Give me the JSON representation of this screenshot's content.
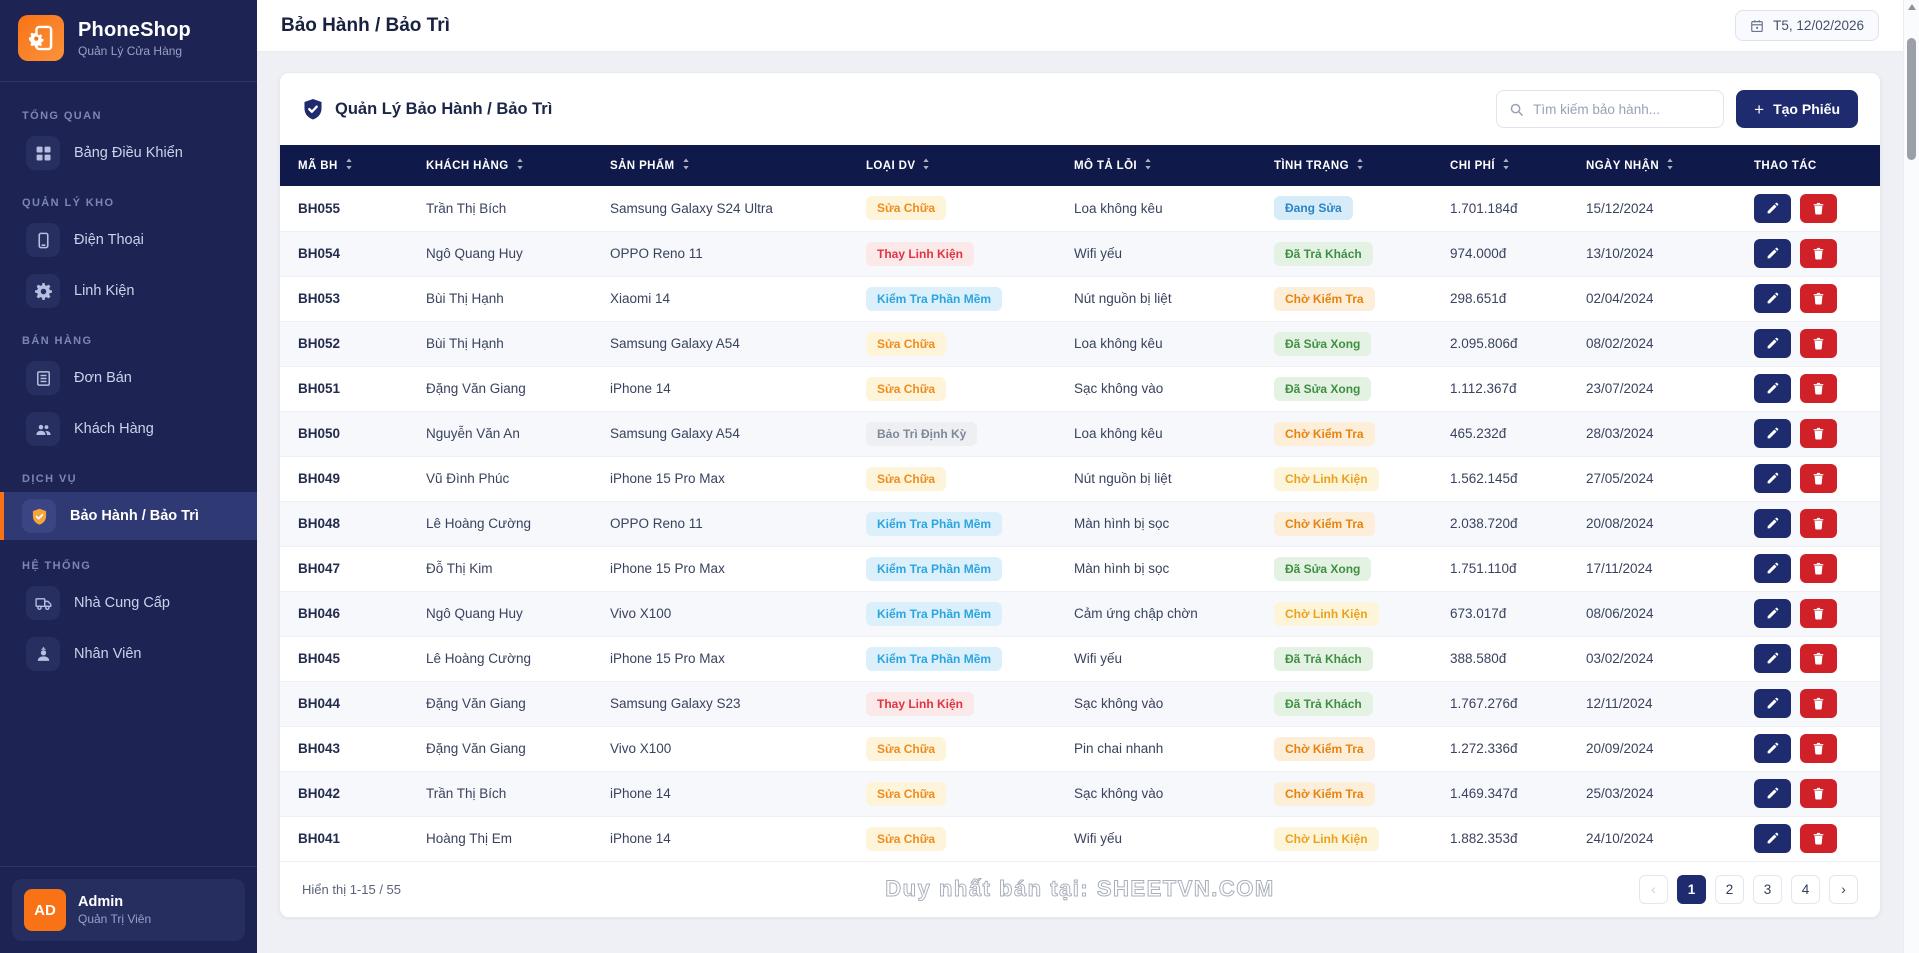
{
  "brand": {
    "name": "PhoneShop",
    "tagline": "Quản Lý Cửa Hàng"
  },
  "sidebar": {
    "sections": [
      {
        "label": "TỔNG QUAN",
        "items": [
          {
            "id": "dashboard",
            "icon": "dashboard",
            "label": "Bảng Điều Khiển",
            "active": false
          }
        ]
      },
      {
        "label": "QUẢN LÝ KHO",
        "items": [
          {
            "id": "phones",
            "icon": "phone",
            "label": "Điện Thoại",
            "active": false
          },
          {
            "id": "parts",
            "icon": "gear",
            "label": "Linh Kiện",
            "active": false
          }
        ]
      },
      {
        "label": "BÁN HÀNG",
        "items": [
          {
            "id": "orders",
            "icon": "receipt",
            "label": "Đơn Bán",
            "active": false
          },
          {
            "id": "customers",
            "icon": "people",
            "label": "Khách Hàng",
            "active": false
          }
        ]
      },
      {
        "label": "DỊCH VỤ",
        "items": [
          {
            "id": "warranty",
            "icon": "shield-check",
            "label": "Bảo Hành / Bảo Trì",
            "active": true
          }
        ]
      },
      {
        "label": "HỆ THỐNG",
        "items": [
          {
            "id": "suppliers",
            "icon": "truck",
            "label": "Nhà Cung Cấp",
            "active": false
          },
          {
            "id": "staff",
            "icon": "worker",
            "label": "Nhân Viên",
            "active": false
          }
        ]
      }
    ],
    "user": {
      "initials": "AD",
      "name": "Admin",
      "role": "Quản Trị Viên"
    }
  },
  "header": {
    "title": "Bảo Hành / Bảo Trì",
    "date_label": "T5, 12/02/2026"
  },
  "panel": {
    "title": "Quản Lý Bảo Hành / Bảo Trì",
    "search_placeholder": "Tìm kiếm bảo hành...",
    "create_button": "Tạo Phiếu"
  },
  "table": {
    "columns": [
      {
        "label": "MÃ BH",
        "sortable": true
      },
      {
        "label": "KHÁCH HÀNG",
        "sortable": true
      },
      {
        "label": "SẢN PHẨM",
        "sortable": true
      },
      {
        "label": "LOẠI DV",
        "sortable": true
      },
      {
        "label": "MÔ TẢ LỖI",
        "sortable": true
      },
      {
        "label": "TÌNH TRẠNG",
        "sortable": true
      },
      {
        "label": "CHI PHÍ",
        "sortable": true
      },
      {
        "label": "NGÀY NHẬN",
        "sortable": true
      },
      {
        "label": "THAO TÁC",
        "sortable": false
      }
    ],
    "service_types": {
      "Sửa Chữa": {
        "bg": "#fdf4da",
        "fg": "#ee8d1e"
      },
      "Thay Linh Kiện": {
        "bg": "#fbe9ea",
        "fg": "#df3540"
      },
      "Kiểm Tra Phần Mềm": {
        "bg": "#dcf0fb",
        "fg": "#2ba4e0"
      },
      "Bảo Trì Định Kỳ": {
        "bg": "#edeff3",
        "fg": "#7e8898"
      }
    },
    "statuses": {
      "Đang Sửa": {
        "bg": "#d7ecf9",
        "fg": "#2d84c5"
      },
      "Đã Trả Khách": {
        "bg": "#e4f2e4",
        "fg": "#3f8f43"
      },
      "Chờ Kiểm Tra": {
        "bg": "#fdeeda",
        "fg": "#e7820d"
      },
      "Đã Sửa Xong": {
        "bg": "#e4f2e4",
        "fg": "#3f8f43"
      },
      "Chờ Linh Kiện": {
        "bg": "#fdf5d9",
        "fg": "#eda01d"
      }
    },
    "rows": [
      {
        "id": "BH055",
        "customer": "Trần Thị Bích",
        "product": "Samsung Galaxy S24 Ultra",
        "service": "Sửa Chữa",
        "issue": "Loa không kêu",
        "status": "Đang Sửa",
        "cost": "1.701.184đ",
        "date": "15/12/2024"
      },
      {
        "id": "BH054",
        "customer": "Ngô Quang Huy",
        "product": "OPPO Reno 11",
        "service": "Thay Linh Kiện",
        "issue": "Wifi yếu",
        "status": "Đã Trả Khách",
        "cost": "974.000đ",
        "date": "13/10/2024"
      },
      {
        "id": "BH053",
        "customer": "Bùi Thị Hạnh",
        "product": "Xiaomi 14",
        "service": "Kiểm Tra Phần Mềm",
        "issue": "Nút nguồn bị liệt",
        "status": "Chờ Kiểm Tra",
        "cost": "298.651đ",
        "date": "02/04/2024"
      },
      {
        "id": "BH052",
        "customer": "Bùi Thị Hạnh",
        "product": "Samsung Galaxy A54",
        "service": "Sửa Chữa",
        "issue": "Loa không kêu",
        "status": "Đã Sửa Xong",
        "cost": "2.095.806đ",
        "date": "08/02/2024"
      },
      {
        "id": "BH051",
        "customer": "Đặng Văn Giang",
        "product": "iPhone 14",
        "service": "Sửa Chữa",
        "issue": "Sạc không vào",
        "status": "Đã Sửa Xong",
        "cost": "1.112.367đ",
        "date": "23/07/2024"
      },
      {
        "id": "BH050",
        "customer": "Nguyễn Văn An",
        "product": "Samsung Galaxy A54",
        "service": "Bảo Trì Định Kỳ",
        "issue": "Loa không kêu",
        "status": "Chờ Kiểm Tra",
        "cost": "465.232đ",
        "date": "28/03/2024"
      },
      {
        "id": "BH049",
        "customer": "Vũ Đình Phúc",
        "product": "iPhone 15 Pro Max",
        "service": "Sửa Chữa",
        "issue": "Nút nguồn bị liệt",
        "status": "Chờ Linh Kiện",
        "cost": "1.562.145đ",
        "date": "27/05/2024"
      },
      {
        "id": "BH048",
        "customer": "Lê Hoàng Cường",
        "product": "OPPO Reno 11",
        "service": "Kiểm Tra Phần Mềm",
        "issue": "Màn hình bị sọc",
        "status": "Chờ Kiểm Tra",
        "cost": "2.038.720đ",
        "date": "20/08/2024"
      },
      {
        "id": "BH047",
        "customer": "Đỗ Thị Kim",
        "product": "iPhone 15 Pro Max",
        "service": "Kiểm Tra Phần Mềm",
        "issue": "Màn hình bị sọc",
        "status": "Đã Sửa Xong",
        "cost": "1.751.110đ",
        "date": "17/11/2024"
      },
      {
        "id": "BH046",
        "customer": "Ngô Quang Huy",
        "product": "Vivo X100",
        "service": "Kiểm Tra Phần Mềm",
        "issue": "Cảm ứng chập chờn",
        "status": "Chờ Linh Kiện",
        "cost": "673.017đ",
        "date": "08/06/2024"
      },
      {
        "id": "BH045",
        "customer": "Lê Hoàng Cường",
        "product": "iPhone 15 Pro Max",
        "service": "Kiểm Tra Phần Mềm",
        "issue": "Wifi yếu",
        "status": "Đã Trả Khách",
        "cost": "388.580đ",
        "date": "03/02/2024"
      },
      {
        "id": "BH044",
        "customer": "Đặng Văn Giang",
        "product": "Samsung Galaxy S23",
        "service": "Thay Linh Kiện",
        "issue": "Sạc không vào",
        "status": "Đã Trả Khách",
        "cost": "1.767.276đ",
        "date": "12/11/2024"
      },
      {
        "id": "BH043",
        "customer": "Đặng Văn Giang",
        "product": "Vivo X100",
        "service": "Sửa Chữa",
        "issue": "Pin chai nhanh",
        "status": "Chờ Kiểm Tra",
        "cost": "1.272.336đ",
        "date": "20/09/2024"
      },
      {
        "id": "BH042",
        "customer": "Trần Thị Bích",
        "product": "iPhone 14",
        "service": "Sửa Chữa",
        "issue": "Sạc không vào",
        "status": "Chờ Kiểm Tra",
        "cost": "1.469.347đ",
        "date": "25/03/2024"
      },
      {
        "id": "BH041",
        "customer": "Hoàng Thị Em",
        "product": "iPhone 14",
        "service": "Sửa Chữa",
        "issue": "Wifi yếu",
        "status": "Chờ Linh Kiện",
        "cost": "1.882.353đ",
        "date": "24/10/2024"
      }
    ]
  },
  "footer": {
    "showing": "Hiển thị 1-15 / 55",
    "watermark": "Duy nhất bán tại: SHEETVN.COM",
    "pagination": {
      "prev": "‹",
      "next": "›",
      "pages": [
        "1",
        "2",
        "3",
        "4"
      ],
      "active": "1",
      "prev_disabled": true
    }
  },
  "colors": {
    "accent": "#1e2b6e",
    "brand_orange": "#f97316",
    "danger": "#cf2127",
    "header_navy": "#101a4a"
  }
}
